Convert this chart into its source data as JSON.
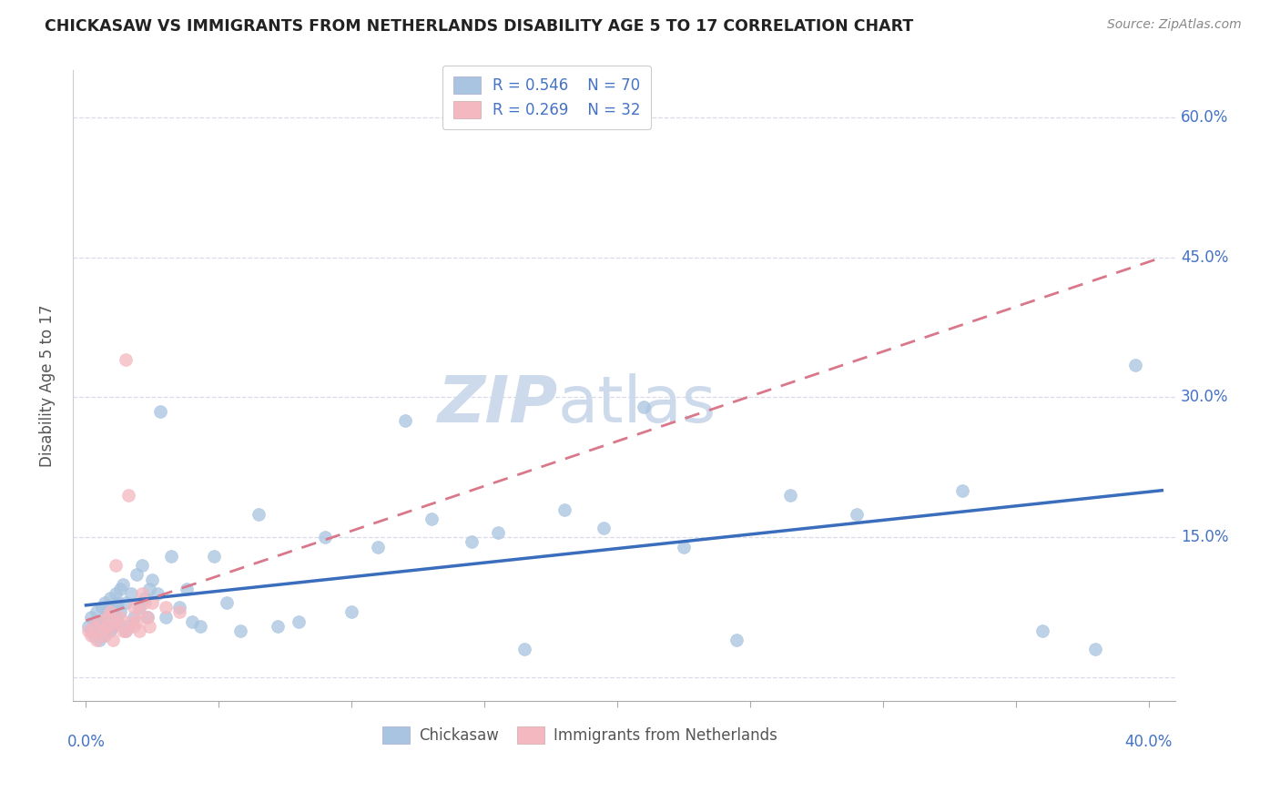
{
  "title": "CHICKASAW VS IMMIGRANTS FROM NETHERLANDS DISABILITY AGE 5 TO 17 CORRELATION CHART",
  "source": "Source: ZipAtlas.com",
  "ylabel": "Disability Age 5 to 17",
  "blue_r": "R = 0.546",
  "blue_n": "N = 70",
  "pink_r": "R = 0.269",
  "pink_n": "N = 32",
  "blue_scatter_color": "#a8c4e0",
  "pink_scatter_color": "#f4b8c0",
  "blue_line_color": "#3a6ebd",
  "pink_line_color": "#d9788a",
  "grid_color": "#d8dce8",
  "title_color": "#222222",
  "axis_label_color": "#4472C4",
  "source_color": "#888888",
  "ylabel_color": "#555555",
  "watermark_color": "#cddaeb",
  "legend_text_color": "#4472C4",
  "legend_edge_color": "#cccccc",
  "bottom_legend_color": "#555555",
  "xlim": [
    -0.005,
    0.41
  ],
  "ylim": [
    -0.025,
    0.65
  ],
  "yticks": [
    0.0,
    0.15,
    0.3,
    0.45,
    0.6
  ],
  "ytick_labels": [
    "",
    "15.0%",
    "30.0%",
    "45.0%",
    "60.0%"
  ],
  "chickasaw_x": [
    0.001,
    0.002,
    0.002,
    0.003,
    0.004,
    0.004,
    0.005,
    0.005,
    0.006,
    0.006,
    0.007,
    0.007,
    0.008,
    0.008,
    0.009,
    0.009,
    0.01,
    0.01,
    0.011,
    0.011,
    0.012,
    0.012,
    0.013,
    0.013,
    0.014,
    0.015,
    0.015,
    0.016,
    0.017,
    0.018,
    0.019,
    0.02,
    0.021,
    0.022,
    0.023,
    0.024,
    0.025,
    0.027,
    0.028,
    0.03,
    0.032,
    0.035,
    0.038,
    0.04,
    0.043,
    0.048,
    0.053,
    0.058,
    0.065,
    0.072,
    0.08,
    0.09,
    0.1,
    0.11,
    0.12,
    0.13,
    0.145,
    0.155,
    0.165,
    0.18,
    0.195,
    0.21,
    0.225,
    0.245,
    0.265,
    0.29,
    0.33,
    0.36,
    0.38,
    0.395
  ],
  "chickasaw_y": [
    0.055,
    0.05,
    0.065,
    0.045,
    0.06,
    0.07,
    0.04,
    0.06,
    0.055,
    0.075,
    0.045,
    0.08,
    0.06,
    0.07,
    0.05,
    0.085,
    0.055,
    0.075,
    0.065,
    0.09,
    0.06,
    0.08,
    0.07,
    0.095,
    0.1,
    0.05,
    0.08,
    0.055,
    0.09,
    0.065,
    0.11,
    0.075,
    0.12,
    0.085,
    0.065,
    0.095,
    0.105,
    0.09,
    0.285,
    0.065,
    0.13,
    0.075,
    0.095,
    0.06,
    0.055,
    0.13,
    0.08,
    0.05,
    0.175,
    0.055,
    0.06,
    0.15,
    0.07,
    0.14,
    0.275,
    0.17,
    0.145,
    0.155,
    0.03,
    0.18,
    0.16,
    0.29,
    0.14,
    0.04,
    0.195,
    0.175,
    0.2,
    0.05,
    0.03,
    0.335
  ],
  "netherlands_x": [
    0.001,
    0.002,
    0.003,
    0.004,
    0.005,
    0.006,
    0.007,
    0.008,
    0.008,
    0.009,
    0.01,
    0.01,
    0.011,
    0.012,
    0.013,
    0.014,
    0.015,
    0.015,
    0.016,
    0.017,
    0.018,
    0.018,
    0.019,
    0.02,
    0.02,
    0.021,
    0.022,
    0.023,
    0.024,
    0.025,
    0.03,
    0.035
  ],
  "netherlands_y": [
    0.05,
    0.045,
    0.055,
    0.04,
    0.06,
    0.05,
    0.045,
    0.065,
    0.055,
    0.07,
    0.04,
    0.055,
    0.12,
    0.06,
    0.065,
    0.05,
    0.05,
    0.34,
    0.195,
    0.06,
    0.075,
    0.055,
    0.06,
    0.07,
    0.05,
    0.09,
    0.08,
    0.065,
    0.055,
    0.08,
    0.075,
    0.07
  ]
}
